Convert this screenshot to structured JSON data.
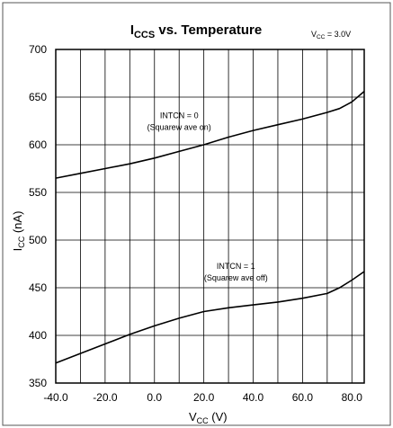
{
  "chart_data": {
    "type": "line",
    "title": "ICCS vs. Temperature",
    "title_main": "I",
    "title_sub": "CCS",
    "title_rest": " vs. Temperature",
    "condition_main": "V",
    "condition_sub": "CC",
    "condition_rest": " = 3.0V",
    "xlabel_main": "V",
    "xlabel_sub": "CC",
    "xlabel_rest": " (V)",
    "ylabel_main": "I",
    "ylabel_sub": "CC",
    "ylabel_rest": " (nA)",
    "xlim": [
      -40,
      85
    ],
    "ylim": [
      350,
      700
    ],
    "x_ticks": [
      -40,
      -20,
      0,
      20,
      40,
      60,
      80
    ],
    "x_tick_labels": [
      "-40.0",
      "-20.0",
      "0.0",
      "20.0",
      "40.0",
      "60.0",
      "80.0"
    ],
    "y_ticks": [
      350,
      400,
      450,
      500,
      550,
      600,
      650,
      700
    ],
    "y_tick_labels": [
      "350",
      "400",
      "450",
      "500",
      "550",
      "600",
      "650",
      "700"
    ],
    "grid": true,
    "series": [
      {
        "x": [
          -40,
          -30,
          -20,
          -10,
          0,
          10,
          20,
          30,
          40,
          50,
          60,
          70,
          75,
          80,
          85
        ],
        "y": [
          565,
          570,
          575,
          580,
          586,
          593,
          600,
          608,
          615,
          621,
          627,
          634,
          638,
          645,
          656
        ]
      },
      {
        "x": [
          -40,
          -30,
          -20,
          -10,
          0,
          10,
          20,
          30,
          40,
          50,
          60,
          70,
          75,
          80,
          85
        ],
        "y": [
          371,
          381,
          391,
          401,
          410,
          418,
          425,
          429,
          432,
          435,
          439,
          444,
          450,
          458,
          467
        ]
      }
    ],
    "annotations": [
      {
        "line1": "INTCN = 0",
        "line2": "(Squarew ave on)",
        "x": 10,
        "y": 628
      },
      {
        "line1": "INTCN = 1",
        "line2": "(Squarew ave off)",
        "x": 33,
        "y": 470
      }
    ]
  }
}
